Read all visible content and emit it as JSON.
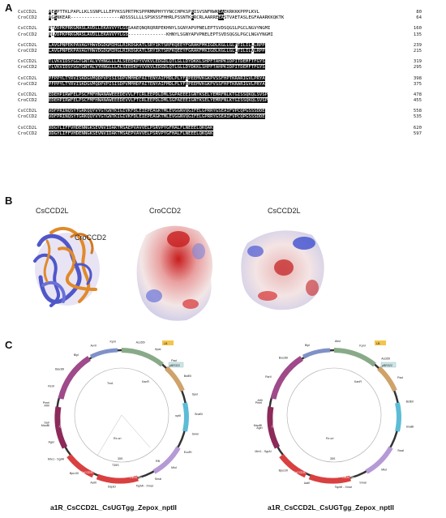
{
  "panels": {
    "a": "A",
    "b": "B",
    "c": "C"
  },
  "alignment": {
    "seq1": "CsCCD2L",
    "seq2": "CroCCD2",
    "blocks": [
      {
        "s1": "MESPTTKLPAPLLKLSSNPLLLEPYKSSPRTPKSPPRMNPHYYYNCCHPKSPRISVSNFNWKEAEKRKKKPPPLKVL",
        "n1": "80",
        "s2": "MGSNKEAR------------------ADSSSLLLLSPSKSSFHHRLPSSNTKRRCRLAARREEASTVAETASLEGFAAARKKQKTK",
        "n2": "64"
      },
      {
        "s1": "NTVDPKPRKGMASLAVDLLEKAVVYYLGSSAAEQNQRQRRPEKHNYLSGNYAPVPNELEPTSVDSQGSLPGCLNGVYNGMI",
        "n1": "160",
        "s2": "NLVDPKPRKGMASLAVDLLEKAVVYYLGS--------------KHNYLSGNYAPVPNELEPTSVDSQGSLPGCLNGVYNGMI",
        "n2": "135"
      },
      {
        "s1": "LAVGPNPEKPAVAGYHWVDGDGMIHGLRIKDGKATLSRYIKTSRFKQEEYFGRAKFMKIGDLKGLLGLFTILILLLRPP",
        "n1": "239",
        "s2": "LAVGPNPEKPAVAGYHWVDGDGMIHGLRIKDGKATLSRYIKTSRFKQEEYFGRAKFMKIGDLKGLLGLLTILILVLRPP",
        "n2": "215"
      },
      {
        "s1": "TLVKVIDSYGGTGNTALVYHNGLLLALSEEDKPYVVKVLEDGDLQTLGLLDYDKKLSHPFTAHPKIDPITDEMFTFGYS",
        "n1": "319",
        "s2": "TLVKVIDSYGGTGNTALVYHNGLLLALSEEDKPYVVKVLEDGDLQTLGLLDYDKKLSHPFTAHPKIDPITDEMFTFGYS",
        "n2": "295"
      },
      {
        "s1": "PFPPYLTYRVISKDGVMQDPVPISISDPVMMHDFAITENYAIFMDLPLYFQPEEMVKGKPVSSFHPTKRARIGVLPRYA",
        "n1": "398",
        "s2": "PFPPYLTYRVISKDGVMQDPVPISISDPVMMHDFAITENYAIFMDLPLYFRPEEMVKGKPVSSFHPTKRARIGVLPRYA",
        "n2": "375"
      },
      {
        "s1": "EDEHPIRWFELPSCFMFHNANAWEEEDEVVLFTCRLEEPDLDMLSGPAEEEIGNTKSELYEMRFNLKTGISSQKQLSVSP",
        "n1": "478",
        "s2": "EDEHPIRWFELPSCFMFHNANAWEEEDEVVLFTCRLEEPDLDMLSGPAEEEIGNTKSELYEMRFNLKTGISSQKQLSVSP",
        "n2": "455"
      },
      {
        "s1": "VDFPRINQSYTGRKQQYVYGTGNTKIGIVKFDLEIEPEAGKTMLEVGGNVQGIFELGPRRYGSEAIFVPCQPGSSSDDE",
        "n1": "558",
        "s2": "VDFPRINQSYTGRKQQYVYGTGNTKIGIVKFDLEIEPEAGKTMLEVGGNVQGIFELGPRRYGSEAIFVPCQPGSSSDDE",
        "n2": "535"
      },
      {
        "s1": "DDGYLIFFVHDENNGKSEVNVIDAKTMSAEPVAVVELPSRVPYGFHALFLNEEELQKQAK",
        "n1": "620",
        "s2": "DDGYLIFFVHDENNGKSEVNVIDAKTMSAEPVAVVELPSRVPYGFHALFLNEEELQKQAK",
        "n2": "597"
      }
    ]
  },
  "structures": {
    "overlay_label_1": "CsCCD2L",
    "overlay_label_2": "CroCCD2",
    "surface1": "CroCCD2",
    "surface2": "CsCCD2L"
  },
  "plasmids": [
    {
      "title": "a1R_CsCCD2L_CsUGTgg_Zepox_nptII"
    },
    {
      "title": "a1R_CsCCD2L_CsUGTgg_Zepox_nptII"
    }
  ],
  "plasmid_sites_left": [
    "MauBI",
    "AflII",
    "RsrII",
    "Bsu36I",
    "BlpI",
    "AvrII",
    "KpnI",
    "Acc65I",
    "HpaI",
    "PacI",
    "BstEII",
    "SpeI",
    "SnaBI",
    "SwaI",
    "EcoRI",
    "MluI",
    "SmaI",
    "TspMI - XmaI",
    "BspEI",
    "AatII",
    "Bpu10I",
    "Mre1 - SgrAI",
    "AgeI",
    "SalI",
    "PmeI"
  ],
  "plasmid_sites_right": [
    "MauBI",
    "AflII",
    "RsrII",
    "Bsu36I",
    "BlpI",
    "AbsI",
    "KpnI",
    "Acc65I",
    "PacI",
    "BstEII",
    "SnaBI",
    "SwaI",
    "MluI",
    "SmaI",
    "TspMI - XmaI",
    "AatII",
    "Bpu10I",
    "Mre1 - SgrAI",
    "AgeI",
    "PmeI"
  ],
  "features": [
    "CsCCD2L",
    "CsUGTgg",
    "Zepox",
    "nptII",
    "35S",
    "T35S",
    "LB",
    "RB",
    "pBR322",
    "KanR",
    "Rx ori",
    "TrxA"
  ]
}
